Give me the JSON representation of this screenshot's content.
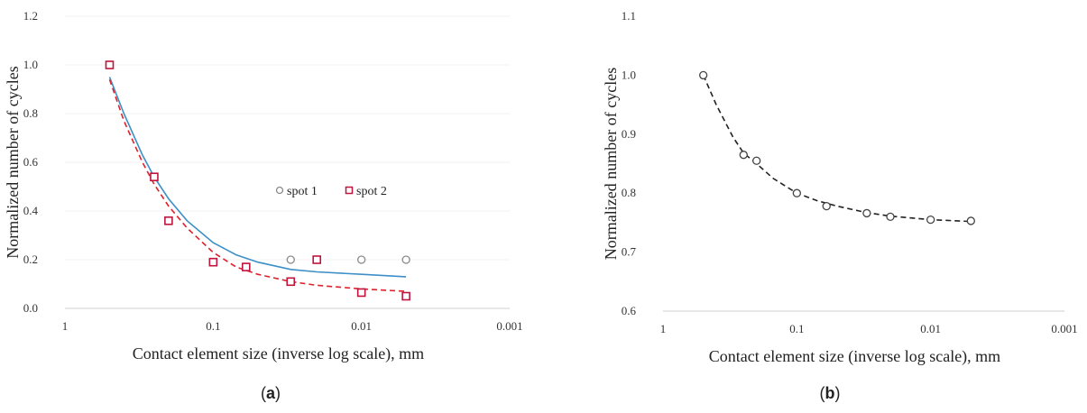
{
  "captions": {
    "a": "a",
    "b": "b"
  },
  "chart_data": [
    {
      "type": "scatter",
      "panel": "a",
      "xlabel": "Contact element size (inverse log scale), mm",
      "ylabel": "Normalized number of cycles",
      "x_scale": "log-reversed",
      "xlim": [
        1,
        0.001
      ],
      "ylim": [
        0,
        1.2
      ],
      "x_ticks": [
        1,
        0.1,
        0.01,
        0.001
      ],
      "x_tick_labels": [
        "1",
        "0.1",
        "0.01",
        "0.001"
      ],
      "y_ticks": [
        0,
        0.2,
        0.4,
        0.6,
        0.8,
        1.0,
        1.2
      ],
      "y_tick_labels": [
        "0.0",
        "0.2",
        "0.4",
        "0.6",
        "0.8",
        "1.0",
        "1.2"
      ],
      "grid": true,
      "legend": "right",
      "series": [
        {
          "name": "spot 1",
          "marker": "circle",
          "color": "#8a8a8a",
          "x": [
            0.5,
            0.25,
            0.2,
            0.1,
            0.06,
            0.03,
            0.02,
            0.01,
            0.005
          ],
          "y": [
            1.0,
            0.54,
            0.36,
            0.19,
            0.17,
            0.2,
            0.2,
            0.2,
            0.2
          ]
        },
        {
          "name": "spot 2",
          "marker": "square",
          "color": "#c0143c",
          "x": [
            0.5,
            0.25,
            0.2,
            0.1,
            0.06,
            0.03,
            0.02,
            0.01,
            0.005
          ],
          "y": [
            1.0,
            0.54,
            0.36,
            0.19,
            0.17,
            0.11,
            0.2,
            0.065,
            0.05
          ]
        }
      ],
      "trendlines": [
        {
          "style": "solid",
          "color": "#3d8fc7",
          "x": [
            0.5,
            0.4,
            0.3,
            0.25,
            0.2,
            0.15,
            0.1,
            0.07,
            0.05,
            0.03,
            0.02,
            0.01,
            0.005
          ],
          "y": [
            0.95,
            0.8,
            0.63,
            0.54,
            0.45,
            0.36,
            0.27,
            0.22,
            0.19,
            0.16,
            0.15,
            0.14,
            0.13
          ]
        },
        {
          "style": "dashed",
          "color": "#e0202a",
          "x": [
            0.5,
            0.4,
            0.3,
            0.25,
            0.2,
            0.15,
            0.1,
            0.07,
            0.05,
            0.03,
            0.02,
            0.01,
            0.005
          ],
          "y": [
            0.94,
            0.77,
            0.6,
            0.51,
            0.42,
            0.33,
            0.23,
            0.17,
            0.14,
            0.11,
            0.095,
            0.08,
            0.07
          ]
        }
      ]
    },
    {
      "type": "scatter",
      "panel": "b",
      "xlabel": "Contact element size (inverse log scale), mm",
      "ylabel": "Normalized number of cycles",
      "x_scale": "log-reversed",
      "xlim": [
        1,
        0.001
      ],
      "ylim": [
        0.6,
        1.1
      ],
      "x_ticks": [
        1,
        0.1,
        0.01,
        0.001
      ],
      "x_tick_labels": [
        "1",
        "0.1",
        "0.01",
        "0.001"
      ],
      "y_ticks": [
        0.6,
        0.7,
        0.8,
        0.9,
        1.0,
        1.1
      ],
      "y_tick_labels": [
        "0.6",
        "0.7",
        "0.8",
        "0.9",
        "1.0",
        "1.1"
      ],
      "grid": false,
      "series": [
        {
          "marker": "circle",
          "color": "#444444",
          "x": [
            0.5,
            0.25,
            0.2,
            0.1,
            0.06,
            0.03,
            0.02,
            0.01,
            0.005
          ],
          "y": [
            1.0,
            0.865,
            0.855,
            0.8,
            0.778,
            0.766,
            0.76,
            0.755,
            0.753
          ]
        }
      ],
      "trendlines": [
        {
          "style": "dashed",
          "color": "#222222",
          "x": [
            0.5,
            0.4,
            0.3,
            0.25,
            0.2,
            0.15,
            0.1,
            0.07,
            0.05,
            0.03,
            0.02,
            0.01,
            0.005
          ],
          "y": [
            1.0,
            0.95,
            0.895,
            0.868,
            0.85,
            0.825,
            0.8,
            0.787,
            0.778,
            0.767,
            0.761,
            0.755,
            0.752
          ]
        }
      ]
    }
  ]
}
